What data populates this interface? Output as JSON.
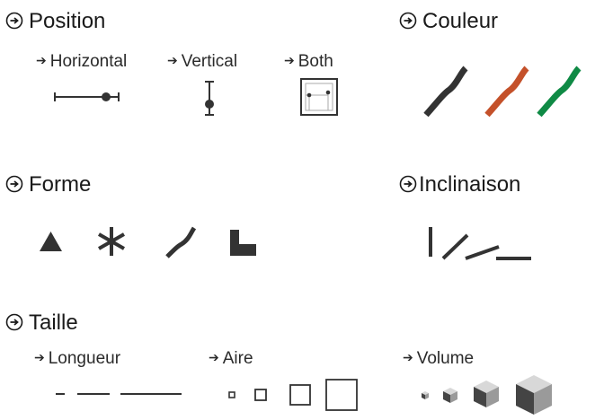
{
  "sections": {
    "position": {
      "title": "Position",
      "horizontal": "Horizontal",
      "vertical": "Vertical",
      "both": "Both"
    },
    "couleur": {
      "title": "Couleur",
      "colors": [
        "#333333",
        "#c4512a",
        "#0f8a45"
      ]
    },
    "forme": {
      "title": "Forme"
    },
    "inclinaison": {
      "title": "Inclinaison"
    },
    "taille": {
      "title": "Taille",
      "longueur": "Longueur",
      "aire": "Aire",
      "volume": "Volume"
    }
  },
  "glyphs": {
    "bullet_arrow": "➔",
    "circle_arrow": "circle-arrow-icon"
  }
}
